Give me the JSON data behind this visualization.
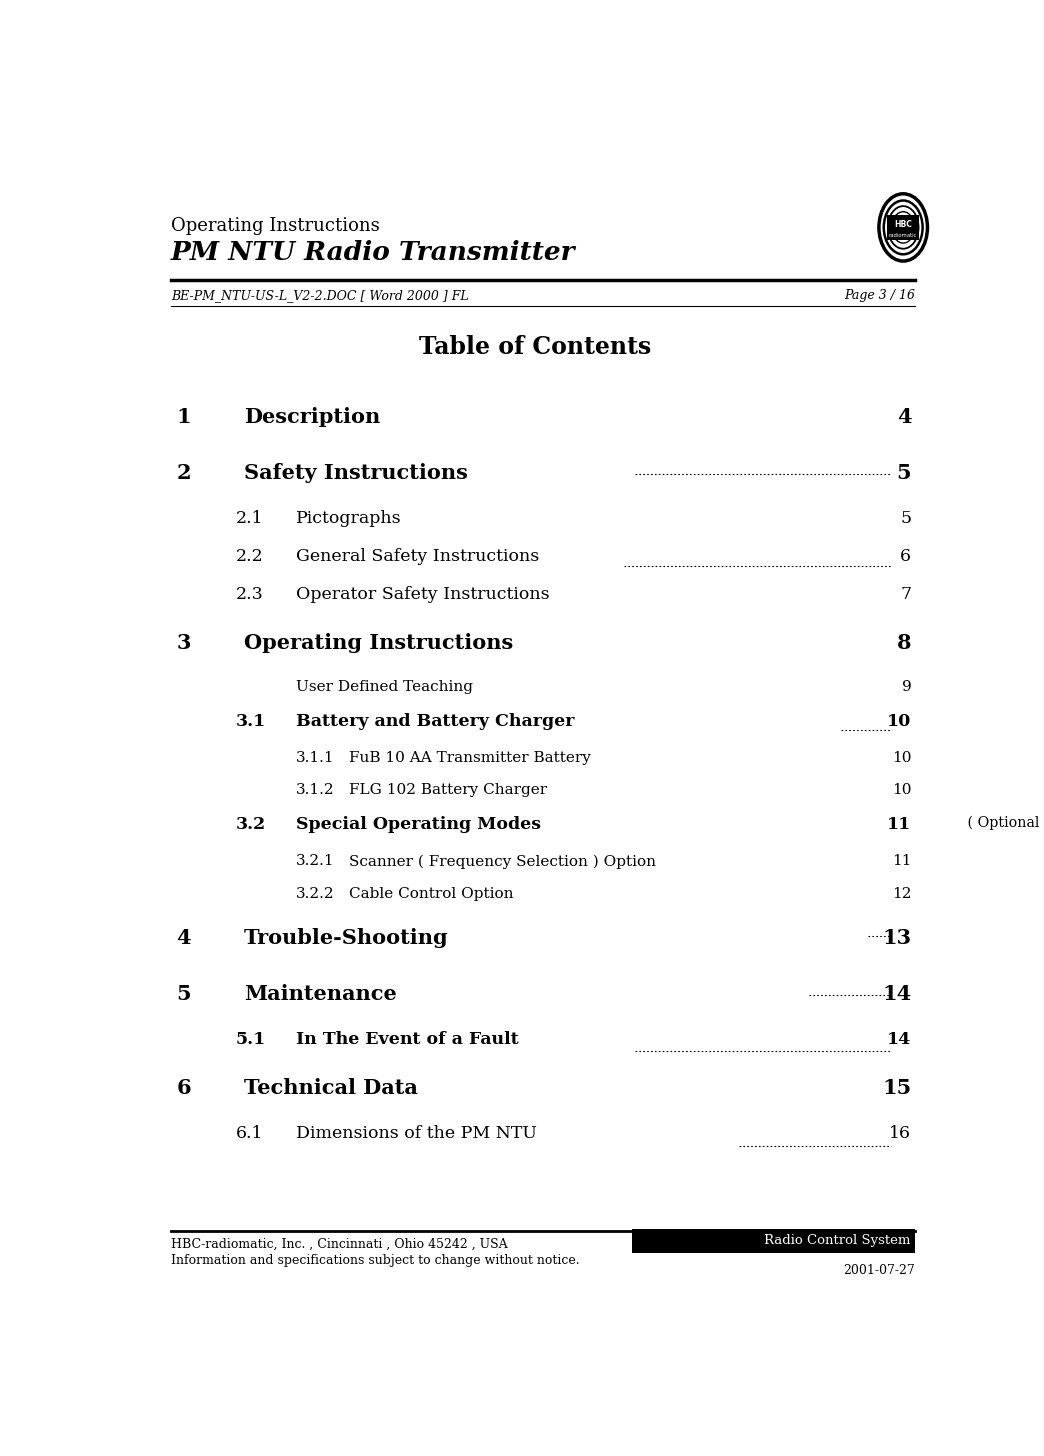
{
  "header_line1": "Operating Instructions",
  "header_line2": "PM NTU Radio Transmitter",
  "subheader_left": "BE-PM_NTU-US-L_V2-2.DOC [ Word 2000 ] FL",
  "subheader_right": "Page 3 / 16",
  "title": "Table of Contents",
  "toc_entries": [
    {
      "level": 1,
      "num": "1",
      "text": "Description",
      "page": "4",
      "bold": true,
      "fontsize": 15
    },
    {
      "level": 1,
      "num": "2",
      "text": "Safety Instructions",
      "page": "5",
      "bold": true,
      "fontsize": 15
    },
    {
      "level": 2,
      "num": "2.1",
      "text": "Pictographs",
      "page": "5",
      "bold": false,
      "fontsize": 12.5
    },
    {
      "level": 2,
      "num": "2.2",
      "text": "General Safety Instructions",
      "page": "6",
      "bold": false,
      "fontsize": 12.5
    },
    {
      "level": 2,
      "num": "2.3",
      "text": "Operator Safety Instructions",
      "page": "7",
      "bold": false,
      "fontsize": 12.5
    },
    {
      "level": 1,
      "num": "3",
      "text": "Operating Instructions",
      "page": "8",
      "bold": true,
      "fontsize": 15
    },
    {
      "level": 3,
      "num": "",
      "text": "User Defined Teaching",
      "page": "9",
      "bold": false,
      "fontsize": 11
    },
    {
      "level": 2,
      "num": "3.1",
      "text": "Battery and Battery Charger",
      "page": "10",
      "bold": true,
      "fontsize": 12.5,
      "extra": ""
    },
    {
      "level": 3,
      "num": "3.1.1",
      "text": "FuB 10 AA Transmitter Battery",
      "page": "10",
      "bold": false,
      "fontsize": 11
    },
    {
      "level": 3,
      "num": "3.1.2",
      "text": "FLG 102 Battery Charger",
      "page": "10",
      "bold": false,
      "fontsize": 11
    },
    {
      "level": 2,
      "num": "3.2",
      "text": "Special Operating Modes",
      "page": "11",
      "bold": true,
      "fontsize": 12.5,
      "extra": " ( Optional )"
    },
    {
      "level": 3,
      "num": "3.2.1",
      "text": "Scanner ( Frequency Selection ) Option",
      "page": "11",
      "bold": false,
      "fontsize": 11
    },
    {
      "level": 3,
      "num": "3.2.2",
      "text": "Cable Control Option",
      "page": "12",
      "bold": false,
      "fontsize": 11
    },
    {
      "level": 1,
      "num": "4",
      "text": "Trouble-Shooting",
      "page": "13",
      "bold": true,
      "fontsize": 15
    },
    {
      "level": 1,
      "num": "5",
      "text": "Maintenance",
      "page": "14",
      "bold": true,
      "fontsize": 15
    },
    {
      "level": 2,
      "num": "5.1",
      "text": "In The Event of a Fault",
      "page": "14",
      "bold": true,
      "fontsize": 12.5,
      "extra": ""
    },
    {
      "level": 1,
      "num": "6",
      "text": "Technical Data",
      "page": "15",
      "bold": true,
      "fontsize": 15
    },
    {
      "level": 2,
      "num": "6.1",
      "text": "Dimensions of the PM NTU",
      "page": "16",
      "bold": false,
      "fontsize": 12.5,
      "extra": ""
    }
  ],
  "footer_left1": "HBC-radiomatic, Inc. , Cincinnati , Ohio 45242 , USA",
  "footer_left2": "Information and specifications subject to change without notice.",
  "footer_right1": "Radio Control System",
  "footer_right2": "2001-07-27",
  "bg_color": "#ffffff",
  "text_color": "#000000"
}
